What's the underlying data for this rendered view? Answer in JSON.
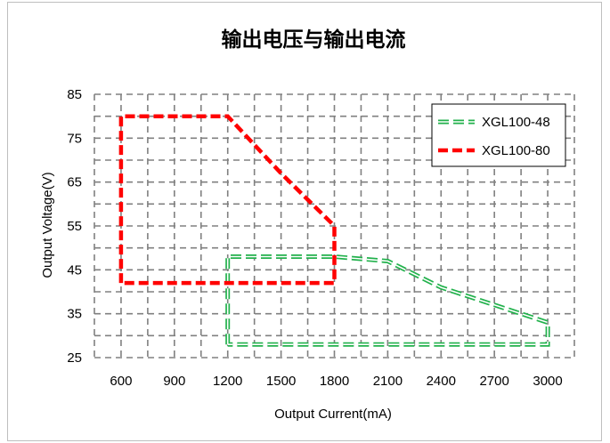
{
  "chart_data": {
    "type": "line",
    "title": "输出电压与输出电流",
    "xlabel": "Output Current(mA)",
    "ylabel": "Output Voltage(V)",
    "xlim": [
      450,
      3150
    ],
    "ylim": [
      25,
      85
    ],
    "x_ticks": [
      600,
      900,
      1200,
      1500,
      1800,
      2100,
      2400,
      2700,
      3000
    ],
    "y_ticks": [
      25,
      35,
      45,
      55,
      65,
      75,
      85
    ],
    "grid": true,
    "legend_position": "top-right",
    "series": [
      {
        "name": "XGL100-48",
        "color": "#22b14c",
        "style": "dashed",
        "points": [
          [
            1200,
            28
          ],
          [
            1200,
            48
          ],
          [
            1800,
            48
          ],
          [
            2100,
            47
          ],
          [
            2400,
            41
          ],
          [
            3000,
            33
          ],
          [
            3000,
            28
          ],
          [
            1200,
            28
          ]
        ]
      },
      {
        "name": "XGL100-80",
        "color": "#ff0000",
        "style": "dashed",
        "points": [
          [
            600,
            42
          ],
          [
            600,
            80
          ],
          [
            1200,
            80
          ],
          [
            1500,
            67
          ],
          [
            1800,
            55
          ],
          [
            1800,
            42
          ],
          [
            600,
            42
          ]
        ]
      }
    ]
  }
}
